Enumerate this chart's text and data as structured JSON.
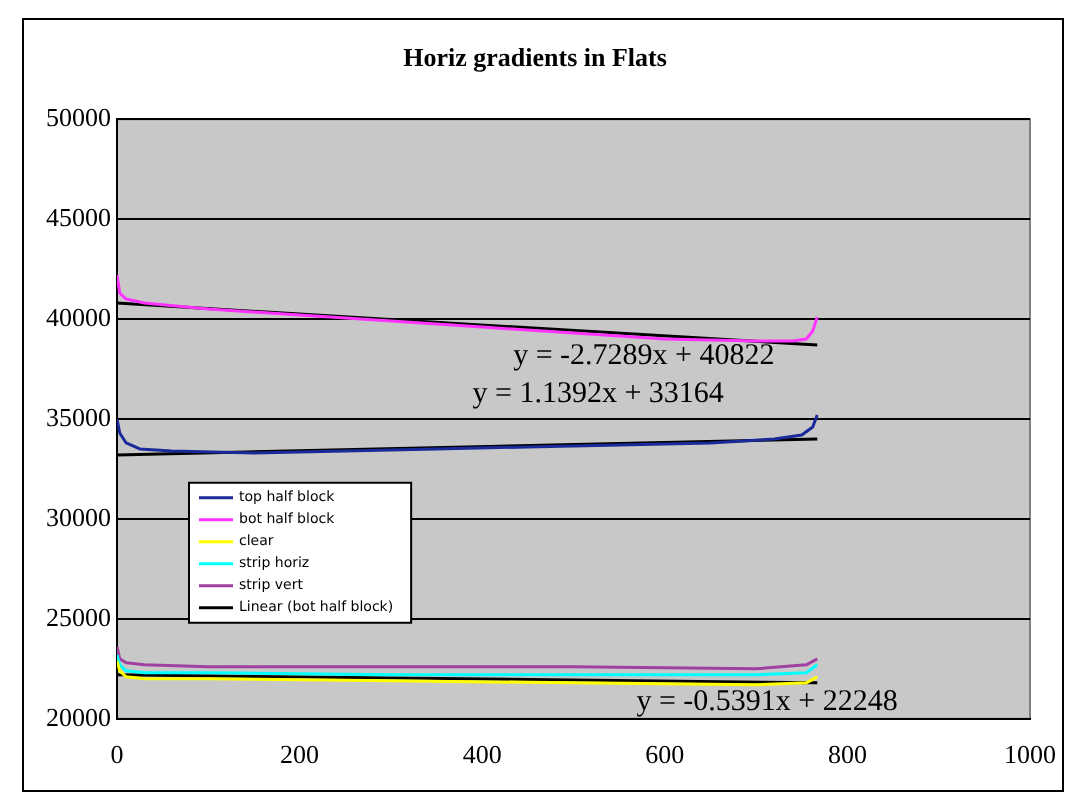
{
  "chart_data": {
    "type": "line",
    "title": "Horiz gradients in Flats",
    "xlim": [
      0,
      1000
    ],
    "xticks": [
      0,
      200,
      400,
      600,
      800,
      1000
    ],
    "ylim": [
      20000,
      50000
    ],
    "yticks": [
      20000,
      25000,
      30000,
      35000,
      40000,
      45000,
      50000
    ],
    "grid": "y",
    "legend": "left",
    "marker": "none",
    "line_style": "solid",
    "series": [
      {
        "name": "top half block",
        "color": "#1a2a9a",
        "x": [
          0,
          3,
          10,
          25,
          60,
          150,
          250,
          350,
          450,
          550,
          650,
          720,
          750,
          762,
          767
        ],
        "values": [
          35000,
          34300,
          33800,
          33500,
          33400,
          33300,
          33400,
          33500,
          33600,
          33700,
          33800,
          34000,
          34200,
          34600,
          35200
        ]
      },
      {
        "name": "bot half block",
        "color": "#ff33ff",
        "x": [
          0,
          3,
          10,
          30,
          100,
          200,
          300,
          400,
          500,
          600,
          700,
          740,
          755,
          762,
          767
        ],
        "values": [
          42200,
          41300,
          41000,
          40800,
          40500,
          40200,
          39900,
          39600,
          39300,
          39000,
          38900,
          38900,
          39000,
          39400,
          40100
        ]
      },
      {
        "name": "clear",
        "color": "#ffff00",
        "x": [
          0,
          3,
          10,
          30,
          100,
          300,
          500,
          700,
          755,
          767
        ],
        "values": [
          22900,
          22400,
          22100,
          22000,
          22000,
          21900,
          21800,
          21700,
          21800,
          22100
        ]
      },
      {
        "name": "strip horiz",
        "color": "#00ffff",
        "x": [
          0,
          3,
          10,
          30,
          100,
          300,
          500,
          700,
          755,
          767
        ],
        "values": [
          23200,
          22700,
          22400,
          22300,
          22300,
          22200,
          22200,
          22200,
          22300,
          22700
        ]
      },
      {
        "name": "strip vert",
        "color": "#a040a0",
        "x": [
          0,
          3,
          10,
          30,
          100,
          300,
          500,
          700,
          755,
          767
        ],
        "values": [
          23600,
          23000,
          22800,
          22700,
          22600,
          22600,
          22600,
          22500,
          22700,
          23000
        ]
      },
      {
        "name": "Linear (bot half block)",
        "color": "#000000",
        "x": [
          0,
          767
        ],
        "values": [
          40800,
          38700
        ]
      },
      {
        "color": "#000000",
        "x": [
          0,
          767
        ],
        "values": [
          33200,
          34000
        ]
      },
      {
        "color": "#000000",
        "x": [
          0,
          767
        ],
        "values": [
          22200,
          21800
        ]
      }
    ],
    "annotations": [
      "y = -2.7289x + 40822",
      "y = 1.1392x + 33164",
      "y = -0.5391x + 22248"
    ]
  }
}
